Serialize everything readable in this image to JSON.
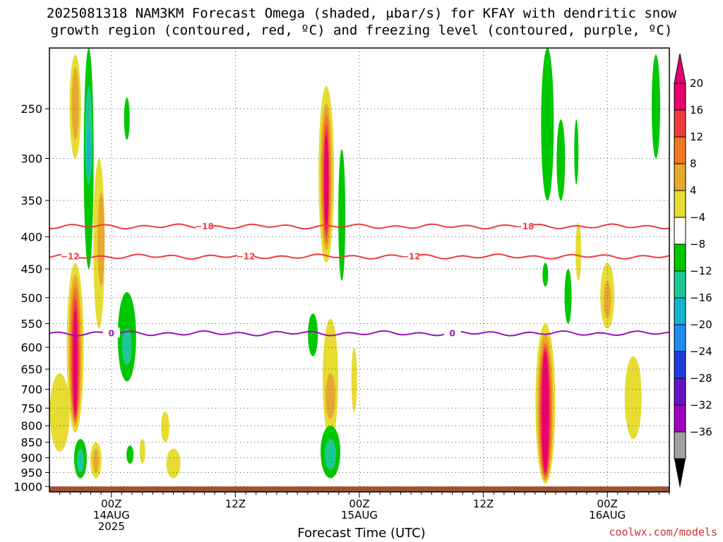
{
  "title_line1": "2025081318 NAM3KM Forecast Omega (shaded, μbar/s) for KFAY with dendritic snow",
  "title_line2": "growth region (contoured, red, ºC) and freezing level (contoured, purple, ºC)",
  "xlabel": "Forecast Time (UTC)",
  "credit": "coolwx.com/models",
  "chart_data": {
    "type": "heatmap",
    "y_axis": {
      "label": "",
      "scale": "log-pressure",
      "inverted": true,
      "range_hPa": [
        1020,
        200
      ],
      "ticks": [
        250,
        300,
        350,
        400,
        450,
        500,
        550,
        600,
        650,
        700,
        750,
        800,
        850,
        900,
        950,
        1000
      ]
    },
    "x_axis": {
      "range_hours": [
        -6,
        54
      ],
      "hours_note": "forecast hours relative to 2025-08-14 00Z",
      "ticks": [
        {
          "hour": 0,
          "label": "00Z",
          "sub": "14AUG",
          "sub2": "2025"
        },
        {
          "hour": 12,
          "label": "12Z",
          "sub": "",
          "sub2": ""
        },
        {
          "hour": 24,
          "label": "00Z",
          "sub": "15AUG",
          "sub2": ""
        },
        {
          "hour": 36,
          "label": "12Z",
          "sub": "",
          "sub2": ""
        },
        {
          "hour": 48,
          "label": "00Z",
          "sub": "16AUG",
          "sub2": ""
        }
      ],
      "grid": "dotted"
    },
    "colorbar": {
      "levels": [
        {
          "label": "20",
          "color": "#e8006e"
        },
        {
          "label": "16",
          "color": "#f03c3c"
        },
        {
          "label": "12",
          "color": "#f07820"
        },
        {
          "label": "8",
          "color": "#e8a830"
        },
        {
          "label": "4",
          "color": "#e6dc32"
        },
        {
          "label": "−4",
          "color": "#ffffff"
        },
        {
          "label": "−8",
          "color": "#00c800"
        },
        {
          "label": "−12",
          "color": "#1ec896"
        },
        {
          "label": "−16",
          "color": "#14b4d2"
        },
        {
          "label": "−20",
          "color": "#1e8cf0"
        },
        {
          "label": "−24",
          "color": "#1e3cdc"
        },
        {
          "label": "−28",
          "color": "#6414c8"
        },
        {
          "label": "−32",
          "color": "#a000c0"
        },
        {
          "label": "−36",
          "color": "#a0a0a0"
        }
      ],
      "top_arrow_color": "#e8006e",
      "bottom_arrow_color": "#000000"
    },
    "contours": [
      {
        "name": "−18",
        "color": "#f03c3c",
        "labels_at_hours": [
          9,
          40
        ]
      },
      {
        "name": "−12",
        "color": "#f03c3c",
        "labels_at_hours": [
          -4,
          13,
          29
        ]
      },
      {
        "name": "0",
        "color": "#9a10c0",
        "labels_at_hours": [
          0,
          33
        ]
      }
    ],
    "ground_color": "#a0522d"
  }
}
